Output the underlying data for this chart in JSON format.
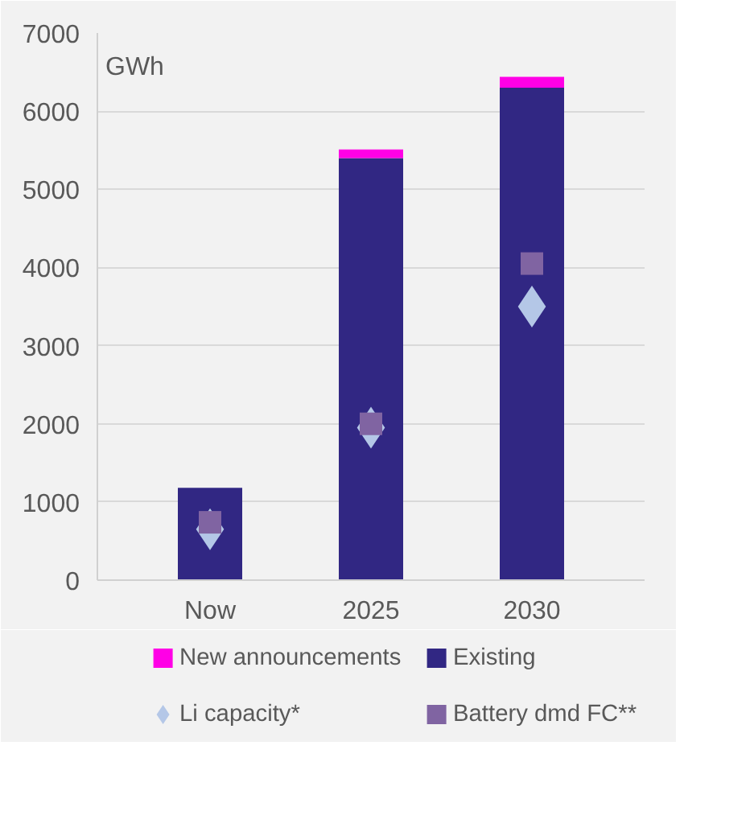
{
  "chart_data": {
    "type": "bar",
    "stacked": true,
    "categories": [
      "Now",
      "2025",
      "2030"
    ],
    "series": [
      {
        "name": "Existing",
        "color": "#312783",
        "values": [
          1180,
          5400,
          6300
        ]
      },
      {
        "name": "New announcements",
        "color": "#ff00e6",
        "values": [
          0,
          110,
          140
        ]
      },
      {
        "name": "Li capacity*",
        "type": "scatter",
        "marker": "diamond",
        "color": "#b4c7e7",
        "values": [
          650,
          1950,
          3500
        ]
      },
      {
        "name": "Battery dmd FC**",
        "type": "scatter",
        "marker": "square",
        "color": "#8064a2",
        "values": [
          740,
          2000,
          4050
        ]
      }
    ],
    "ylim": [
      0,
      7000
    ],
    "yticks": [
      0,
      1000,
      2000,
      3000,
      4000,
      5000,
      6000,
      7000
    ],
    "annotations": [
      "GWh"
    ],
    "grid": "y",
    "legend": "bottom"
  }
}
